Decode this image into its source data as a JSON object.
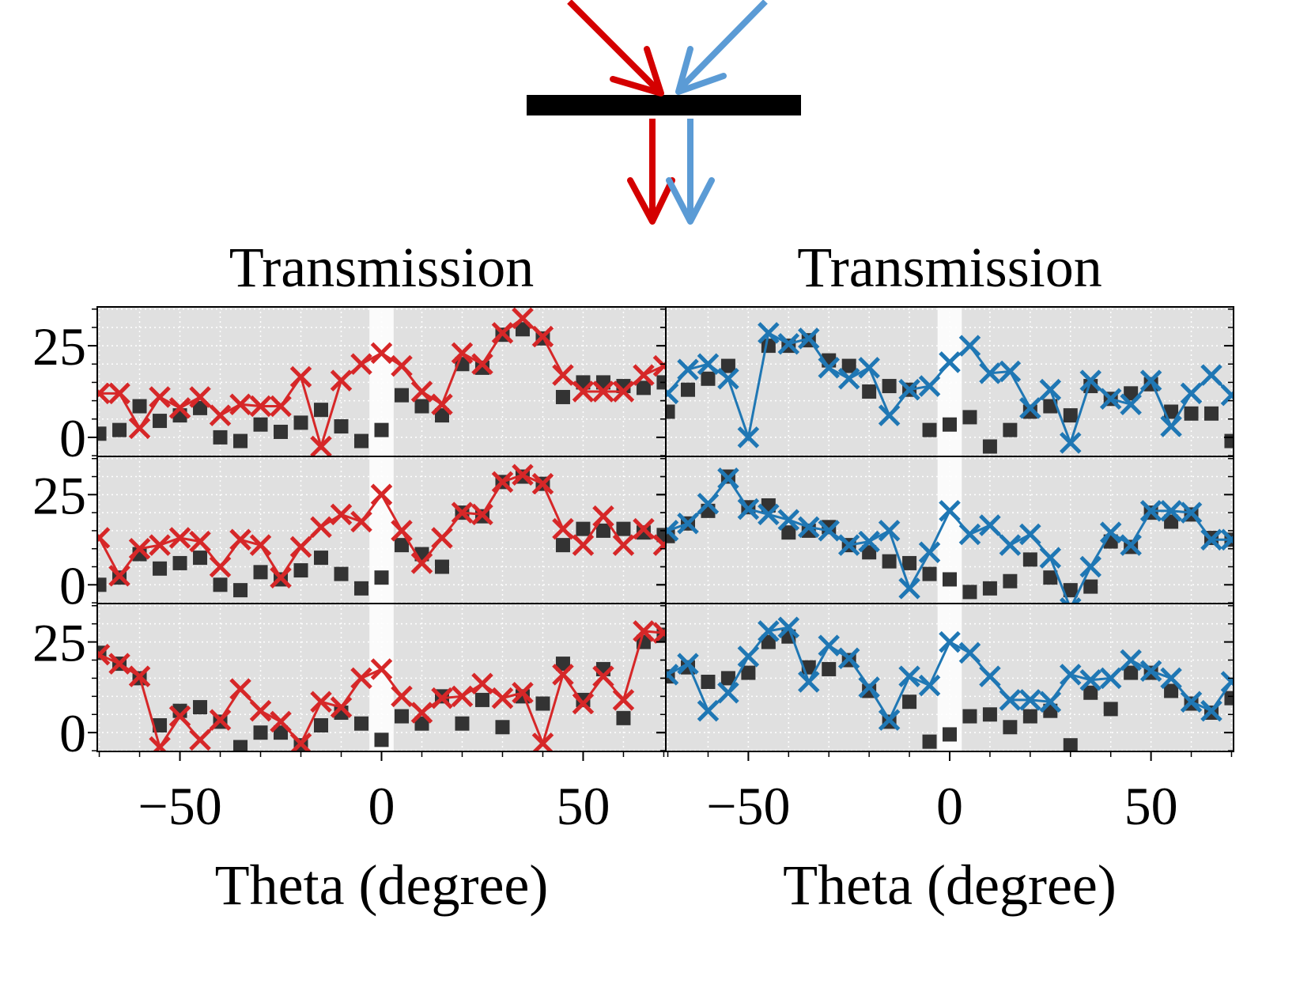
{
  "chart_data": [
    {
      "type": "line",
      "title": "Transmission",
      "x": [
        -70,
        -65,
        -60,
        -55,
        -50,
        -45,
        -40,
        -35,
        -30,
        -25,
        -20,
        -15,
        -10,
        -5,
        0,
        5,
        10,
        15,
        20,
        25,
        30,
        35,
        40,
        45,
        50,
        55,
        60,
        65,
        70
      ],
      "series": [
        {
          "color": "#333333",
          "marker": "square",
          "line": false,
          "values": [
            1,
            2,
            8.5,
            4.5,
            6,
            8,
            0,
            -1,
            3.5,
            1.5,
            4,
            7.5,
            3,
            -1,
            2,
            11.5,
            8.5,
            6,
            20,
            19,
            28,
            29.5,
            27,
            11,
            15,
            15,
            14,
            13.5,
            15
          ]
        },
        {
          "color": "#d62728",
          "marker": "cross",
          "line": true,
          "values": [
            12,
            12,
            2.5,
            11,
            8,
            11,
            6,
            9,
            8.5,
            8.5,
            16.5,
            -2.5,
            15.5,
            20,
            23,
            19.5,
            12.5,
            9,
            23,
            20,
            28.5,
            32.5,
            27.5,
            17,
            12.5,
            12.5,
            12.5,
            17,
            19.5
          ]
        }
      ],
      "xlim": [
        -70.5,
        70.5
      ],
      "ylim": [
        -5.2,
        35.6
      ],
      "xticks": [
        -50,
        0,
        50
      ],
      "yticks": [
        0,
        25
      ],
      "xminorticks": [
        -70,
        -60,
        -40,
        -30,
        -20,
        -10,
        10,
        20,
        30,
        40,
        60,
        70
      ],
      "yminorticks": [
        -5,
        5,
        10,
        15,
        20,
        30,
        35
      ],
      "band": [
        -3,
        3
      ],
      "grid": true,
      "background": "#e0e0e0"
    },
    {
      "type": "line",
      "title": "Transmission",
      "x": [
        -70,
        -65,
        -60,
        -55,
        -50,
        -45,
        -40,
        -35,
        -30,
        -25,
        -20,
        -15,
        -10,
        -5,
        0,
        5,
        10,
        15,
        20,
        25,
        30,
        35,
        40,
        45,
        50,
        55,
        60,
        65,
        70
      ],
      "series": [
        {
          "color": "#333333",
          "marker": "square",
          "line": false,
          "values": [
            7,
            13,
            16,
            19.5,
            null,
            25,
            25,
            26.5,
            21,
            19.5,
            12.5,
            14,
            13,
            2,
            3.5,
            5.5,
            -2.5,
            2,
            7,
            8.5,
            6,
            14,
            10.5,
            12,
            14.5,
            7,
            6.5,
            6.5,
            -1
          ]
        },
        {
          "color": "#1f77b4",
          "marker": "cross",
          "line": true,
          "values": [
            12,
            18.5,
            20,
            16,
            0,
            28.5,
            25.5,
            27,
            19,
            16,
            19,
            6,
            13,
            14,
            20.5,
            25,
            17.5,
            18,
            8,
            13,
            -1.5,
            15.5,
            10.5,
            9,
            15.5,
            3,
            12,
            17,
            11.5
          ]
        }
      ],
      "xlim": [
        -70.5,
        70.5
      ],
      "ylim": [
        -5.2,
        35.6
      ],
      "xticks": [
        -50,
        0,
        50
      ],
      "yticks": [
        0,
        25
      ],
      "xminorticks": [
        -70,
        -60,
        -40,
        -30,
        -20,
        -10,
        10,
        20,
        30,
        40,
        60,
        70
      ],
      "yminorticks": [
        -5,
        5,
        10,
        15,
        20,
        30,
        35
      ],
      "band": [
        -3,
        3
      ],
      "grid": true,
      "background": "#e0e0e0"
    },
    {
      "type": "line",
      "x": [
        -70,
        -65,
        -60,
        -55,
        -50,
        -45,
        -40,
        -35,
        -30,
        -25,
        -20,
        -15,
        -10,
        -5,
        0,
        5,
        10,
        15,
        20,
        25,
        30,
        35,
        40,
        45,
        50,
        55,
        60,
        65,
        70
      ],
      "series": [
        {
          "color": "#333333",
          "marker": "square",
          "line": false,
          "values": [
            0,
            2,
            8.5,
            4.5,
            6,
            7.5,
            0,
            -1.5,
            3.5,
            1.5,
            4,
            7.5,
            3,
            -1,
            2,
            11,
            8.5,
            5,
            20,
            19,
            28.5,
            30,
            28,
            11,
            15.5,
            15,
            15.5,
            14.5,
            13.8
          ]
        },
        {
          "color": "#d62728",
          "marker": "cross",
          "line": true,
          "values": [
            13,
            2.5,
            10,
            11,
            13,
            12,
            5,
            12.5,
            11,
            2,
            10.5,
            16,
            19.5,
            17.5,
            25,
            15,
            6,
            13,
            20,
            19.5,
            28.5,
            30.5,
            28,
            15.5,
            11,
            19,
            11,
            15.5,
            11
          ]
        }
      ],
      "xlim": [
        -70.5,
        70.5
      ],
      "ylim": [
        -5.2,
        35.6
      ],
      "xticks": [
        -50,
        0,
        50
      ],
      "yticks": [
        0,
        25
      ],
      "xminorticks": [
        -70,
        -60,
        -40,
        -30,
        -20,
        -10,
        10,
        20,
        30,
        40,
        60,
        70
      ],
      "yminorticks": [
        -5,
        5,
        10,
        15,
        20,
        30,
        35
      ],
      "band": [
        -3,
        3
      ],
      "grid": true,
      "background": "#e0e0e0"
    },
    {
      "type": "line",
      "x": [
        -70,
        -65,
        -60,
        -55,
        -50,
        -45,
        -40,
        -35,
        -30,
        -25,
        -20,
        -15,
        -10,
        -5,
        0,
        5,
        10,
        15,
        20,
        25,
        30,
        35,
        40,
        45,
        50,
        55,
        60,
        65,
        70
      ],
      "series": [
        {
          "color": "#333333",
          "marker": "square",
          "line": false,
          "values": [
            13.5,
            17,
            20.5,
            30,
            21.5,
            22,
            14.5,
            15,
            16,
            11,
            9,
            6.5,
            6,
            3,
            1.5,
            -2,
            -1,
            1,
            7,
            2,
            -1.5,
            -0.5,
            12,
            10.5,
            20,
            17.5,
            19.5,
            13,
            12.5
          ]
        },
        {
          "color": "#1f77b4",
          "marker": "cross",
          "line": true,
          "values": [
            15,
            17,
            22.5,
            29.5,
            21,
            19.5,
            18,
            16,
            15,
            11,
            12,
            15,
            -1,
            9,
            20.5,
            14,
            16.5,
            11,
            14,
            7.5,
            -6.5,
            5,
            14.5,
            11,
            20.5,
            20.5,
            20,
            12.5,
            12.5
          ]
        }
      ],
      "xlim": [
        -70.5,
        70.5
      ],
      "ylim": [
        -5.2,
        35.6
      ],
      "xticks": [
        -50,
        0,
        50
      ],
      "yticks": [
        0,
        25
      ],
      "xminorticks": [
        -70,
        -60,
        -40,
        -30,
        -20,
        -10,
        10,
        20,
        30,
        40,
        60,
        70
      ],
      "yminorticks": [
        -5,
        5,
        10,
        15,
        20,
        30,
        35
      ],
      "band": [
        -3,
        3
      ],
      "grid": true,
      "background": "#e0e0e0"
    },
    {
      "type": "line",
      "xlabel": "Theta (degree)",
      "x": [
        -70,
        -65,
        -60,
        -55,
        -50,
        -45,
        -40,
        -35,
        -30,
        -25,
        -20,
        -15,
        -10,
        -5,
        0,
        5,
        10,
        15,
        20,
        25,
        30,
        35,
        40,
        45,
        50,
        55,
        60,
        65,
        70
      ],
      "series": [
        {
          "color": "#333333",
          "marker": "square",
          "line": false,
          "values": [
            22,
            19,
            15,
            2,
            6,
            7,
            3,
            -4,
            0,
            0,
            -3.5,
            2,
            5.5,
            2.5,
            -2,
            4.5,
            2.5,
            10,
            2.5,
            9,
            1.5,
            10,
            8,
            19,
            9,
            17.5,
            4,
            25,
            27
          ]
        },
        {
          "color": "#d62728",
          "marker": "cross",
          "line": true,
          "values": [
            21.5,
            19,
            15.5,
            -4,
            4.5,
            -2,
            3.5,
            12,
            6,
            3,
            -3,
            8.5,
            7,
            15,
            17.5,
            10,
            5.5,
            9.5,
            10,
            13.5,
            9.5,
            11,
            -3,
            16,
            8,
            15.5,
            9,
            28,
            27.5
          ]
        }
      ],
      "xlim": [
        -70.5,
        70.5
      ],
      "ylim": [
        -5.2,
        35.6
      ],
      "xticks": [
        {
          "value": -50,
          "label": "−50"
        },
        0,
        50
      ],
      "yticks": [
        0,
        25
      ],
      "xminorticks": [
        -70,
        -60,
        -40,
        -30,
        -20,
        -10,
        10,
        20,
        30,
        40,
        60,
        70
      ],
      "yminorticks": [
        -5,
        5,
        10,
        15,
        20,
        30,
        35
      ],
      "band": [
        -3,
        3
      ],
      "grid": true,
      "background": "#e0e0e0"
    },
    {
      "type": "line",
      "xlabel": "Theta (degree)",
      "x": [
        -70,
        -65,
        -60,
        -55,
        -50,
        -45,
        -40,
        -35,
        -30,
        -25,
        -20,
        -15,
        -10,
        -5,
        0,
        5,
        10,
        15,
        20,
        25,
        30,
        35,
        40,
        45,
        50,
        55,
        60,
        65,
        70
      ],
      "series": [
        {
          "color": "#333333",
          "marker": "square",
          "line": false,
          "values": [
            15.5,
            18,
            14,
            15,
            16.5,
            25,
            26.5,
            18,
            17.5,
            20,
            11.5,
            3,
            8.5,
            -2.5,
            -0.5,
            4.5,
            5,
            1.5,
            4.5,
            6,
            -3.5,
            11,
            6.5,
            16.5,
            16.5,
            11.5,
            8,
            5.5,
            9.5
          ]
        },
        {
          "color": "#1f77b4",
          "marker": "cross",
          "line": true,
          "values": [
            16,
            19,
            6,
            11,
            21,
            28,
            29,
            14,
            24,
            20.5,
            12.5,
            3.5,
            15.5,
            13,
            25,
            22,
            15.5,
            9,
            9,
            8.5,
            16,
            14.5,
            15,
            20,
            17,
            15,
            8.5,
            6,
            14
          ]
        }
      ],
      "xlim": [
        -70.5,
        70.5
      ],
      "ylim": [
        -5.2,
        35.6
      ],
      "xticks": [
        {
          "value": -50,
          "label": "−50"
        },
        0,
        50
      ],
      "yticks": [
        0,
        25
      ],
      "xminorticks": [
        -70,
        -60,
        -40,
        -30,
        -20,
        -10,
        10,
        20,
        30,
        40,
        60,
        70
      ],
      "yminorticks": [
        -5,
        5,
        10,
        15,
        20,
        30,
        35
      ],
      "band": [
        -3,
        3
      ],
      "grid": true,
      "background": "#e0e0e0"
    }
  ]
}
